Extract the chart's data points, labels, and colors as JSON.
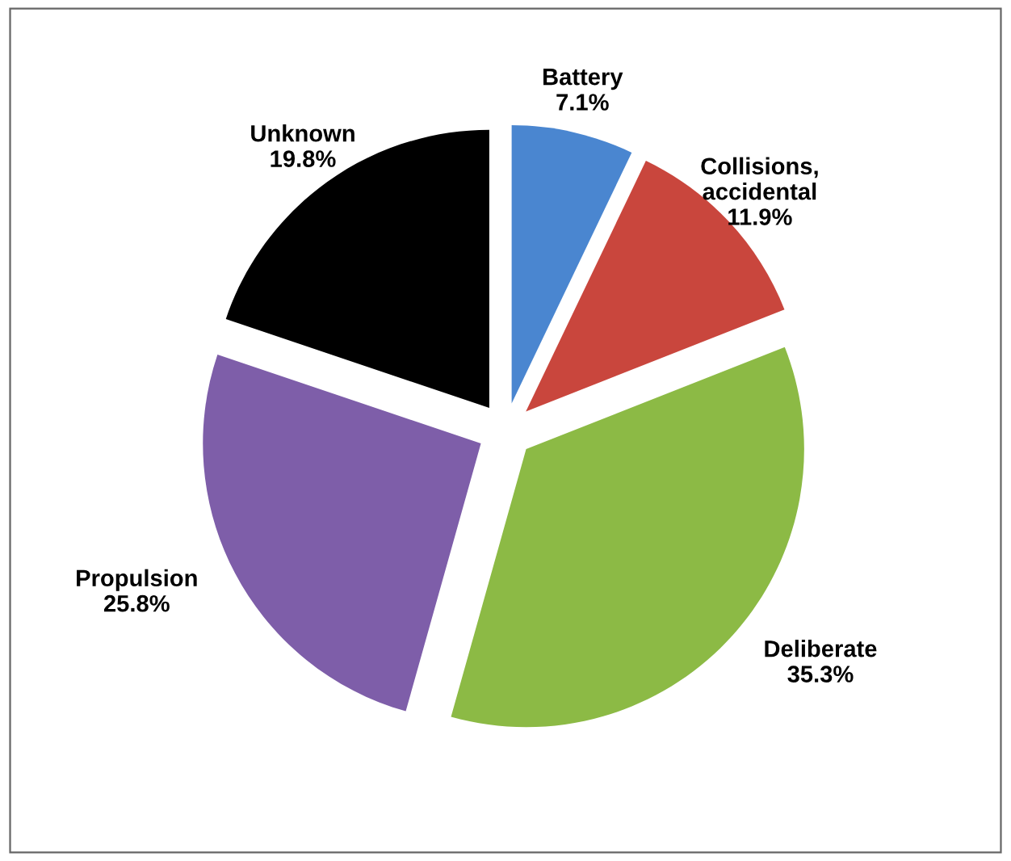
{
  "chart_data": {
    "type": "pie",
    "categories": [
      "Battery",
      "Collisions,\naccidental",
      "Deliberate",
      "Propulsion",
      "Unknown"
    ],
    "values": [
      7.1,
      11.9,
      35.3,
      25.8,
      19.8
    ],
    "value_labels": [
      "7.1%",
      "11.9%",
      "35.3%",
      "25.8%",
      "19.8%"
    ],
    "colors": [
      "#4a86d0",
      "#c9463d",
      "#8cba45",
      "#7e5ea9",
      "#000000"
    ],
    "legend": false
  }
}
